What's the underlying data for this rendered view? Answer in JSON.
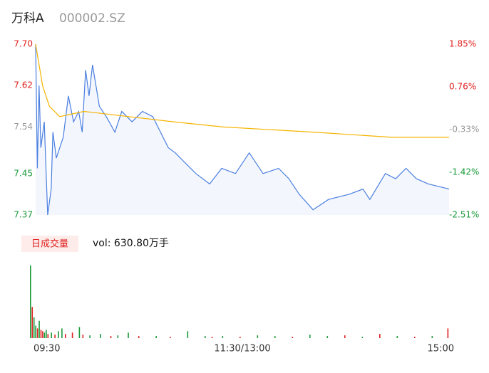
{
  "header": {
    "title": "万科A",
    "code": "000002.SZ"
  },
  "chart_data": [
    {
      "type": "line",
      "xlim": [
        0,
        240
      ],
      "xticks": [
        {
          "value": 0,
          "label": "09:30"
        },
        {
          "value": 120,
          "label": "11:30/13:00"
        },
        {
          "value": 240,
          "label": "15:00"
        }
      ],
      "ylim": [
        7.37,
        7.7
      ],
      "yticks": [
        {
          "value": 7.7,
          "label": "7.70"
        },
        7.62,
        7.54,
        7.45,
        7.37
      ],
      "ytick_colors": [
        "#e02020",
        "#e02020",
        "#999999",
        "#1a9a3a",
        "#1a9a3a"
      ],
      "y2lim": [
        -2.51,
        1.85
      ],
      "y2ticks": [
        {
          "value": 1.85,
          "label": "1.85%"
        },
        {
          "value": 0.76,
          "label": "0.76%"
        },
        {
          "value": -0.33,
          "label": "-0.33%"
        },
        {
          "value": -1.42,
          "label": "-1.42%"
        },
        {
          "value": -2.51,
          "label": "-2.51%"
        }
      ],
      "area_color": "#f3f6fd",
      "series": [
        {
          "name": "price",
          "color": "#4a7fe0",
          "x": [
            0,
            1,
            2,
            3,
            5,
            7,
            9,
            10,
            12,
            16,
            19,
            22,
            25,
            27,
            29,
            31,
            33,
            37,
            41,
            46,
            50,
            56,
            62,
            68,
            77,
            81,
            87,
            93,
            101,
            108,
            116,
            124,
            132,
            141,
            147,
            153,
            161,
            170,
            182,
            190,
            194,
            203,
            209,
            215,
            221,
            228,
            240
          ],
          "values": [
            7.7,
            7.46,
            7.62,
            7.5,
            7.55,
            7.37,
            7.42,
            7.53,
            7.48,
            7.52,
            7.6,
            7.55,
            7.57,
            7.53,
            7.65,
            7.6,
            7.66,
            7.58,
            7.56,
            7.53,
            7.57,
            7.55,
            7.57,
            7.56,
            7.5,
            7.49,
            7.47,
            7.45,
            7.43,
            7.46,
            7.45,
            7.49,
            7.45,
            7.46,
            7.44,
            7.41,
            7.38,
            7.4,
            7.41,
            7.42,
            7.4,
            7.45,
            7.44,
            7.46,
            7.44,
            7.43,
            7.42
          ]
        },
        {
          "name": "average",
          "color": "#f5b400",
          "x": [
            0,
            4,
            8,
            14,
            28,
            80,
            109,
            161,
            207,
            240
          ],
          "values": [
            7.7,
            7.62,
            7.58,
            7.56,
            7.57,
            7.55,
            7.54,
            7.53,
            7.52,
            7.52
          ]
        }
      ]
    },
    {
      "type": "bar",
      "label": "日成交量",
      "summary": "vol: 630.80万手",
      "xlim": [
        0,
        240
      ],
      "ylim": [
        0,
        110
      ],
      "x": [
        0,
        1,
        2,
        3,
        4,
        5,
        6,
        7,
        8,
        9,
        10,
        12,
        14,
        16,
        18,
        20,
        24,
        28,
        30,
        34,
        40,
        46,
        50,
        56,
        62,
        72,
        80,
        90,
        100,
        104,
        110,
        120,
        130,
        140,
        150,
        160,
        170,
        180,
        190,
        200,
        210,
        220,
        230,
        239
      ],
      "values": [
        105,
        45,
        30,
        18,
        14,
        25,
        12,
        10,
        8,
        12,
        6,
        8,
        5,
        10,
        14,
        6,
        8,
        16,
        5,
        4,
        6,
        3,
        4,
        8,
        3,
        3,
        2,
        10,
        3,
        2,
        3,
        2,
        4,
        3,
        2,
        5,
        3,
        4,
        2,
        6,
        3,
        2,
        3,
        14
      ],
      "colors": [
        "#1a9a3a",
        "#e02020",
        "#1a9a3a",
        "#1a9a3a",
        "#e02020",
        "#1a9a3a",
        "#e02020",
        "#e02020",
        "#1a9a3a",
        "#1a9a3a",
        "#e02020",
        "#1a9a3a",
        "#e02020",
        "#1a9a3a",
        "#1a9a3a",
        "#e02020",
        "#e02020",
        "#1a9a3a",
        "#e02020",
        "#1a9a3a",
        "#1a9a3a",
        "#e02020",
        "#1a9a3a",
        "#1a9a3a",
        "#e02020",
        "#1a9a3a",
        "#e02020",
        "#1a9a3a",
        "#1a9a3a",
        "#e02020",
        "#1a9a3a",
        "#e02020",
        "#1a9a3a",
        "#1a9a3a",
        "#e02020",
        "#1a9a3a",
        "#1a9a3a",
        "#e02020",
        "#1a9a3a",
        "#e02020",
        "#1a9a3a",
        "#e02020",
        "#1a9a3a",
        "#e02020"
      ]
    }
  ]
}
